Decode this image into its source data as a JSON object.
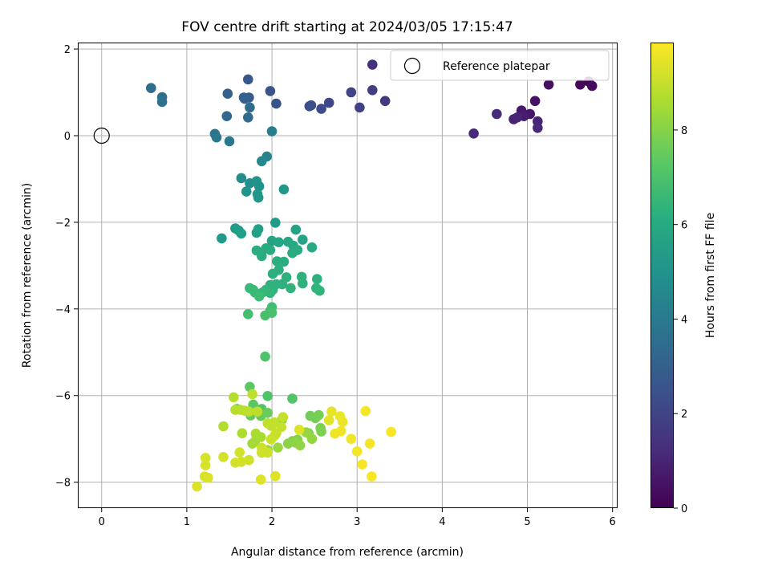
{
  "chart_data": {
    "type": "scatter",
    "title": "FOV centre drift starting at 2024/03/05 17:15:47",
    "xlabel": "Angular distance from reference (arcmin)",
    "ylabel": "Rotation from reference (arcmin)",
    "xlim": [
      -0.28,
      6.05
    ],
    "ylim": [
      -8.6,
      2.15
    ],
    "xticks": [
      0,
      1,
      2,
      3,
      4,
      5,
      6
    ],
    "yticks": [
      2,
      0,
      -2,
      -4,
      -6,
      -8
    ],
    "xtick_labels": [
      "0",
      "1",
      "2",
      "3",
      "4",
      "5",
      "6"
    ],
    "ytick_labels": [
      "2",
      "0",
      "−2",
      "−4",
      "−6",
      "−8"
    ],
    "grid": true,
    "legend": {
      "placement": "top-right",
      "entries": [
        "Reference platepar"
      ]
    },
    "reference_point": {
      "x": 0,
      "y": 0,
      "label": "Reference platepar"
    },
    "colorbar": {
      "label": "Hours from first FF file",
      "range": [
        0,
        9.85
      ],
      "ticks": [
        0,
        2,
        4,
        6,
        8
      ],
      "tick_labels": [
        "0",
        "2",
        "4",
        "6",
        "8"
      ],
      "colormap": "viridis"
    },
    "points": [
      [
        5.72,
        1.25,
        0.1
      ],
      [
        5.62,
        1.18,
        0.2
      ],
      [
        5.76,
        1.15,
        0.3
      ],
      [
        5.25,
        1.18,
        0.4
      ],
      [
        5.09,
        0.8,
        0.5
      ],
      [
        5.03,
        0.5,
        0.6
      ],
      [
        4.93,
        0.58,
        0.7
      ],
      [
        4.96,
        0.45,
        0.8
      ],
      [
        4.84,
        0.38,
        0.9
      ],
      [
        4.88,
        0.42,
        1.0
      ],
      [
        5.12,
        0.33,
        1.05
      ],
      [
        5.12,
        0.18,
        1.1
      ],
      [
        4.64,
        0.5,
        1.15
      ],
      [
        4.37,
        0.05,
        1.2
      ],
      [
        3.18,
        1.64,
        1.4
      ],
      [
        3.33,
        0.8,
        1.7
      ],
      [
        3.18,
        1.05,
        1.8
      ],
      [
        3.03,
        0.65,
        1.9
      ],
      [
        2.93,
        1.0,
        2.0
      ],
      [
        2.67,
        0.76,
        2.1
      ],
      [
        2.58,
        0.62,
        2.2
      ],
      [
        2.46,
        0.7,
        2.3
      ],
      [
        2.44,
        0.68,
        2.4
      ],
      [
        2.05,
        0.74,
        2.5
      ],
      [
        1.98,
        1.03,
        2.6
      ],
      [
        1.72,
        1.3,
        2.7
      ],
      [
        1.73,
        0.88,
        2.8
      ],
      [
        1.67,
        0.88,
        2.9
      ],
      [
        1.68,
        0.85,
        3.0
      ],
      [
        1.48,
        0.97,
        3.1
      ],
      [
        1.47,
        0.45,
        3.2
      ],
      [
        1.72,
        0.42,
        3.3
      ],
      [
        1.74,
        0.65,
        3.4
      ],
      [
        0.58,
        1.1,
        3.5
      ],
      [
        0.71,
        0.89,
        3.6
      ],
      [
        0.71,
        0.78,
        3.7
      ],
      [
        1.33,
        0.04,
        3.8
      ],
      [
        1.35,
        -0.04,
        3.9
      ],
      [
        1.5,
        -0.13,
        4.0
      ],
      [
        2.0,
        0.1,
        4.2
      ],
      [
        1.94,
        -0.48,
        4.4
      ],
      [
        1.88,
        -0.59,
        4.6
      ],
      [
        1.64,
        -0.98,
        4.8
      ],
      [
        1.74,
        -1.1,
        4.9
      ],
      [
        1.82,
        -1.05,
        5.0
      ],
      [
        1.85,
        -1.17,
        5.05
      ],
      [
        1.7,
        -1.29,
        5.1
      ],
      [
        1.83,
        -1.35,
        5.15
      ],
      [
        1.84,
        -1.43,
        5.2
      ],
      [
        2.14,
        -1.24,
        5.25
      ],
      [
        1.41,
        -2.37,
        5.3
      ],
      [
        2.04,
        -2.01,
        5.35
      ],
      [
        1.57,
        -2.14,
        5.4
      ],
      [
        1.61,
        -2.19,
        5.45
      ],
      [
        1.64,
        -2.26,
        5.5
      ],
      [
        1.84,
        -2.16,
        5.55
      ],
      [
        1.82,
        -2.24,
        5.6
      ],
      [
        2.28,
        -2.17,
        5.65
      ],
      [
        2.36,
        -2.4,
        5.7
      ],
      [
        2.0,
        -2.43,
        5.75
      ],
      [
        2.08,
        -2.46,
        5.8
      ],
      [
        2.19,
        -2.45,
        5.85
      ],
      [
        2.25,
        -2.54,
        5.9
      ],
      [
        2.47,
        -2.58,
        5.95
      ],
      [
        1.93,
        -2.6,
        6.0
      ],
      [
        1.98,
        -2.64,
        6.02
      ],
      [
        2.3,
        -2.64,
        6.04
      ],
      [
        2.24,
        -2.71,
        6.06
      ],
      [
        1.88,
        -2.78,
        6.08
      ],
      [
        1.82,
        -2.65,
        6.1
      ],
      [
        2.06,
        -2.9,
        6.12
      ],
      [
        2.14,
        -2.91,
        6.14
      ],
      [
        2.08,
        -3.1,
        6.16
      ],
      [
        2.01,
        -3.19,
        6.18
      ],
      [
        2.17,
        -3.27,
        6.2
      ],
      [
        2.35,
        -3.26,
        6.22
      ],
      [
        2.53,
        -3.31,
        6.24
      ],
      [
        2.36,
        -3.41,
        6.26
      ],
      [
        2.12,
        -3.43,
        6.28
      ],
      [
        2.05,
        -3.43,
        6.3
      ],
      [
        1.98,
        -3.45,
        6.32
      ],
      [
        2.01,
        -3.56,
        6.34
      ],
      [
        2.22,
        -3.52,
        6.36
      ],
      [
        2.52,
        -3.52,
        6.38
      ],
      [
        2.56,
        -3.58,
        6.4
      ],
      [
        1.98,
        -3.63,
        6.45
      ],
      [
        1.93,
        -3.56,
        6.5
      ],
      [
        1.89,
        -3.62,
        6.55
      ],
      [
        1.8,
        -3.62,
        6.6
      ],
      [
        1.74,
        -3.52,
        6.65
      ],
      [
        1.78,
        -3.56,
        6.7
      ],
      [
        1.85,
        -3.71,
        6.75
      ],
      [
        2.0,
        -3.96,
        6.8
      ],
      [
        1.98,
        -4.05,
        6.85
      ],
      [
        1.72,
        -4.12,
        6.9
      ],
      [
        1.92,
        -4.15,
        6.95
      ],
      [
        2.0,
        -4.09,
        7.0
      ],
      [
        1.92,
        -5.1,
        7.05
      ],
      [
        1.95,
        -6.01,
        7.1
      ],
      [
        2.24,
        -6.07,
        7.15
      ],
      [
        1.88,
        -6.31,
        7.2
      ],
      [
        1.78,
        -6.21,
        7.3
      ],
      [
        1.74,
        -5.8,
        7.35
      ],
      [
        1.59,
        -6.31,
        7.4
      ],
      [
        1.72,
        -6.37,
        7.45
      ],
      [
        1.75,
        -6.46,
        7.5
      ],
      [
        1.87,
        -6.47,
        7.55
      ],
      [
        1.95,
        -6.4,
        7.6
      ],
      [
        2.12,
        -6.55,
        7.65
      ],
      [
        2.45,
        -6.47,
        7.7
      ],
      [
        2.51,
        -6.52,
        7.75
      ],
      [
        2.55,
        -6.45,
        7.8
      ],
      [
        2.57,
        -6.75,
        7.85
      ],
      [
        2.58,
        -6.83,
        7.9
      ],
      [
        2.43,
        -6.87,
        7.95
      ],
      [
        2.3,
        -7.02,
        8.0
      ],
      [
        2.24,
        -7.05,
        8.05
      ],
      [
        2.19,
        -7.11,
        8.1
      ],
      [
        2.28,
        -7.09,
        8.15
      ],
      [
        2.33,
        -7.15,
        8.2
      ],
      [
        2.47,
        -7.0,
        8.25
      ],
      [
        2.4,
        -6.85,
        8.3
      ],
      [
        2.07,
        -7.2,
        8.35
      ],
      [
        1.95,
        -7.26,
        8.4
      ],
      [
        1.77,
        -7.11,
        8.45
      ],
      [
        1.8,
        -7.06,
        8.5
      ],
      [
        1.87,
        -6.96,
        8.55
      ],
      [
        1.81,
        -6.88,
        8.6
      ],
      [
        1.65,
        -6.87,
        8.65
      ],
      [
        1.43,
        -6.71,
        8.7
      ],
      [
        1.55,
        -6.04,
        8.75
      ],
      [
        1.57,
        -6.33,
        8.8
      ],
      [
        1.63,
        -6.33,
        8.82
      ],
      [
        1.68,
        -6.35,
        8.84
      ],
      [
        1.73,
        -6.37,
        8.86
      ],
      [
        1.83,
        -6.37,
        8.88
      ],
      [
        1.77,
        -5.97,
        8.9
      ],
      [
        1.95,
        -6.64,
        8.92
      ],
      [
        1.99,
        -6.7,
        8.94
      ],
      [
        2.03,
        -6.62,
        8.96
      ],
      [
        2.11,
        -6.73,
        8.98
      ],
      [
        2.13,
        -6.5,
        9.0
      ],
      [
        2.05,
        -6.87,
        9.02
      ],
      [
        2.03,
        -6.93,
        9.04
      ],
      [
        1.99,
        -7.01,
        9.06
      ],
      [
        1.88,
        -7.21,
        9.08
      ],
      [
        1.9,
        -7.28,
        9.1
      ],
      [
        1.95,
        -7.32,
        9.12
      ],
      [
        1.88,
        -7.32,
        9.14
      ],
      [
        1.73,
        -7.49,
        9.16
      ],
      [
        1.64,
        -7.53,
        9.18
      ],
      [
        1.62,
        -7.31,
        9.2
      ],
      [
        1.57,
        -7.55,
        9.22
      ],
      [
        1.43,
        -7.42,
        9.24
      ],
      [
        1.22,
        -7.44,
        9.26
      ],
      [
        1.22,
        -7.61,
        9.28
      ],
      [
        1.21,
        -7.87,
        9.3
      ],
      [
        1.25,
        -7.9,
        9.32
      ],
      [
        1.12,
        -8.1,
        9.34
      ],
      [
        1.87,
        -7.94,
        9.36
      ],
      [
        2.04,
        -7.86,
        9.38
      ],
      [
        2.32,
        -6.79,
        9.4
      ],
      [
        2.67,
        -6.57,
        9.45
      ],
      [
        2.7,
        -6.37,
        9.5
      ],
      [
        2.8,
        -6.48,
        9.55
      ],
      [
        2.83,
        -6.61,
        9.6
      ],
      [
        2.81,
        -6.82,
        9.62
      ],
      [
        2.74,
        -6.88,
        9.64
      ],
      [
        2.93,
        -7.0,
        9.66
      ],
      [
        3.0,
        -7.29,
        9.68
      ],
      [
        3.1,
        -6.36,
        9.7
      ],
      [
        3.15,
        -7.11,
        9.72
      ],
      [
        3.06,
        -7.59,
        9.74
      ],
      [
        3.17,
        -7.87,
        9.76
      ],
      [
        3.4,
        -6.84,
        9.78
      ]
    ]
  }
}
